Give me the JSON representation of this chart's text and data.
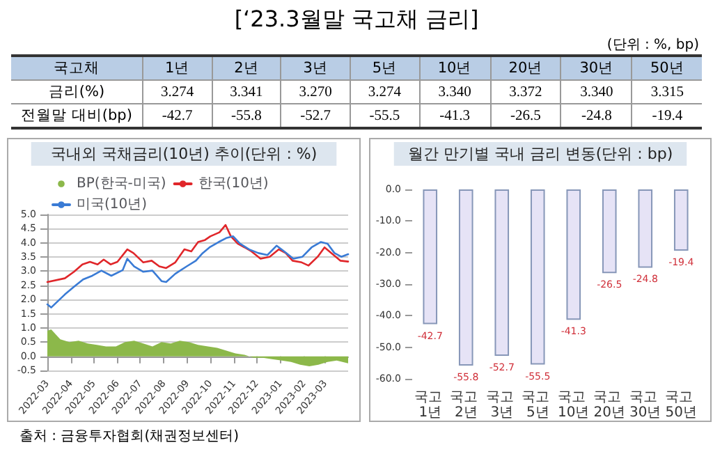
{
  "chart_data": [
    {
      "type": "other",
      "title": "[‘23.3월말 국고채 금리]",
      "annotations": [
        "(단위 : %, bp)"
      ],
      "xlabel": "국고채",
      "categories": [
        "1년",
        "2년",
        "3년",
        "5년",
        "10년",
        "20년",
        "30년",
        "50년"
      ],
      "series": [
        {
          "name": "금리(%)",
          "values": [
            3.274,
            3.341,
            3.27,
            3.274,
            3.34,
            3.372,
            3.34,
            3.315
          ],
          "value_labels": [
            "3.274",
            "3.341",
            "3.270",
            "3.274",
            "3.340",
            "3.372",
            "3.340",
            "3.315"
          ]
        },
        {
          "name": "전월말 대비(bp)",
          "values": [
            -42.7,
            -55.8,
            -52.7,
            -55.5,
            -41.3,
            -26.5,
            -24.8,
            -19.4
          ],
          "value_labels": [
            "-42.7",
            "-55.8",
            "-52.7",
            "-55.5",
            "-41.3",
            "-26.5",
            "-24.8",
            "-19.4"
          ]
        }
      ]
    },
    {
      "type": "line",
      "title": "국내외 국채금리(10년) 추이(단위 : %)",
      "legend": "top left",
      "grid": "y",
      "marker": "none",
      "xlim": [
        "2022-03-01",
        "2023-03-31"
      ],
      "xticks": [
        "2022-03",
        "2022-04",
        "2022-05",
        "2022-06",
        "2022-07",
        "2022-08",
        "2022-09",
        "2022-10",
        "2022-11",
        "2022-12",
        "2023-01",
        "2023-02",
        "2023-03"
      ],
      "ylim": [
        -0.5,
        5.0
      ],
      "yticks": [
        {
          "value": -0.5,
          "label": "-0.5"
        },
        {
          "value": 0,
          "label": "0.0"
        },
        {
          "value": 0.5,
          "label": "0.5"
        },
        {
          "value": 1,
          "label": "1.0"
        },
        {
          "value": 1.5,
          "label": "1.5"
        },
        {
          "value": 2,
          "label": "2.0"
        },
        {
          "value": 2.5,
          "label": "2.5"
        },
        {
          "value": 3,
          "label": "3.0"
        },
        {
          "value": 3.5,
          "label": "3.5"
        },
        {
          "value": 4,
          "label": "4.0"
        },
        {
          "value": 4.5,
          "label": "4.5"
        },
        {
          "value": 5,
          "label": "5.0"
        }
      ],
      "series": [
        {
          "name": "BP(한국-미국)",
          "type": "area",
          "color": "#8cb84a",
          "x": [
            "2022-03-01",
            "2022-03-06",
            "2022-03-18",
            "2022-03-30",
            "2022-04-11",
            "2022-04-23",
            "2022-05-05",
            "2022-05-17",
            "2022-05-30",
            "2022-06-11",
            "2022-06-23",
            "2022-07-05",
            "2022-07-17",
            "2022-07-29",
            "2022-08-10",
            "2022-08-22",
            "2022-09-03",
            "2022-09-15",
            "2022-09-28",
            "2022-10-10",
            "2022-10-22",
            "2022-11-03",
            "2022-11-15",
            "2022-11-27",
            "2022-12-09",
            "2022-12-21",
            "2023-01-03",
            "2023-01-15",
            "2023-01-27",
            "2023-02-08",
            "2023-02-20",
            "2023-03-04",
            "2023-03-16",
            "2023-03-31"
          ],
          "values": [
            0.9,
            0.95,
            0.6,
            0.5,
            0.55,
            0.45,
            0.4,
            0.35,
            0.35,
            0.5,
            0.55,
            0.45,
            0.35,
            0.5,
            0.45,
            0.55,
            0.5,
            0.4,
            0.35,
            0.3,
            0.2,
            0.1,
            0.05,
            -0.05,
            -0.05,
            -0.1,
            -0.15,
            -0.2,
            -0.3,
            -0.35,
            -0.3,
            -0.2,
            -0.15,
            -0.25
          ]
        },
        {
          "name": "한국(10년)",
          "color": "#e0262a",
          "x": [
            "2022-03-01",
            "2022-03-24",
            "2022-04-05",
            "2022-04-16",
            "2022-04-26",
            "2022-05-06",
            "2022-05-14",
            "2022-05-23",
            "2022-06-01",
            "2022-06-14",
            "2022-06-22",
            "2022-07-05",
            "2022-07-16",
            "2022-07-26",
            "2022-08-04",
            "2022-08-16",
            "2022-08-28",
            "2022-09-06",
            "2022-09-15",
            "2022-09-24",
            "2022-10-01",
            "2022-10-13",
            "2022-10-21",
            "2022-10-28",
            "2022-11-06",
            "2022-11-15",
            "2022-11-24",
            "2022-12-06",
            "2022-12-18",
            "2022-12-30",
            "2023-01-08",
            "2023-01-17",
            "2023-01-29",
            "2023-02-07",
            "2023-02-19",
            "2023-02-28",
            "2023-03-12",
            "2023-03-21",
            "2023-03-31"
          ],
          "values": [
            2.62,
            2.75,
            2.98,
            3.24,
            3.33,
            3.24,
            3.41,
            3.24,
            3.33,
            3.77,
            3.64,
            3.31,
            3.37,
            3.17,
            3.11,
            3.31,
            3.77,
            3.7,
            4.03,
            4.1,
            4.23,
            4.37,
            4.63,
            4.23,
            3.97,
            3.84,
            3.7,
            3.44,
            3.51,
            3.77,
            3.64,
            3.37,
            3.31,
            3.2,
            3.51,
            3.84,
            3.57,
            3.37,
            3.34
          ]
        },
        {
          "name": "미국(10년)",
          "color": "#3a7bd5",
          "x": [
            "2022-03-01",
            "2022-03-06",
            "2022-03-24",
            "2022-04-05",
            "2022-04-17",
            "2022-04-29",
            "2022-05-11",
            "2022-05-24",
            "2022-06-08",
            "2022-06-14",
            "2022-06-23",
            "2022-07-05",
            "2022-07-17",
            "2022-07-29",
            "2022-08-04",
            "2022-08-16",
            "2022-08-31",
            "2022-09-12",
            "2022-09-21",
            "2022-09-30",
            "2022-10-12",
            "2022-10-22",
            "2022-10-31",
            "2022-11-09",
            "2022-11-21",
            "2022-12-03",
            "2022-12-15",
            "2022-12-27",
            "2023-01-06",
            "2023-01-18",
            "2023-01-30",
            "2023-02-11",
            "2023-02-23",
            "2023-03-04",
            "2023-03-13",
            "2023-03-22",
            "2023-03-31"
          ],
          "values": [
            1.83,
            1.72,
            2.18,
            2.45,
            2.71,
            2.84,
            3.02,
            2.84,
            3.04,
            3.44,
            3.17,
            2.98,
            3.02,
            2.65,
            2.62,
            2.91,
            3.17,
            3.37,
            3.64,
            3.84,
            4.03,
            4.17,
            4.23,
            3.97,
            3.77,
            3.64,
            3.57,
            3.9,
            3.7,
            3.44,
            3.51,
            3.84,
            4.03,
            3.97,
            3.64,
            3.51,
            3.6
          ]
        }
      ]
    },
    {
      "type": "bar",
      "title": "월간 만기별 국내 금리 변동(단위 : bp)",
      "categories": [
        "국고 1년",
        "국고 2년",
        "국고 3년",
        "국고 5년",
        "국고 10년",
        "국고 20년",
        "국고 30년",
        "국고 50년"
      ],
      "values": [
        -42.7,
        -55.8,
        -52.7,
        -55.5,
        -41.3,
        -26.5,
        -24.8,
        -19.4
      ],
      "color": "#e6e3f6",
      "data_labels": true,
      "ylim": [
        -60,
        0
      ],
      "yticks": [
        {
          "value": -60,
          "label": "-60.0"
        },
        {
          "value": -50,
          "label": "-50.0"
        },
        {
          "value": -40,
          "label": "-40.0"
        },
        {
          "value": -30,
          "label": "-30.0"
        },
        {
          "value": -20,
          "label": "-20.0"
        },
        {
          "value": -10,
          "label": "-10.0"
        },
        {
          "value": 0,
          "label": "0.0"
        }
      ],
      "annotations": [
        "출처 : 금융투자협회(채권정보센터)"
      ]
    }
  ]
}
